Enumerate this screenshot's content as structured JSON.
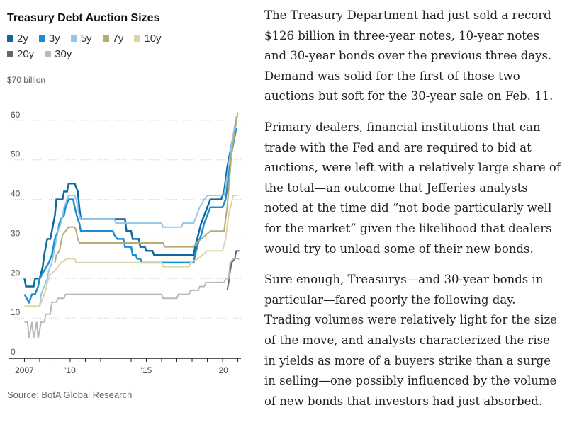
{
  "chart_data": {
    "type": "line",
    "title": "Treasury Debt Auction Sizes",
    "unit_label": "$70 billion",
    "source": "Source: BofA Global Research",
    "ylim": [
      0,
      70
    ],
    "xlim": [
      2006.7,
      2021.3
    ],
    "y_ticks": [
      {
        "value": 0,
        "label": "0"
      },
      {
        "value": 10,
        "label": "10"
      },
      {
        "value": 20,
        "label": "20"
      },
      {
        "value": 30,
        "label": "30"
      },
      {
        "value": 40,
        "label": "40"
      },
      {
        "value": 50,
        "label": "50"
      },
      {
        "value": 60,
        "label": "60"
      }
    ],
    "x_ticks": [
      {
        "value": 2007,
        "label": "2007"
      },
      {
        "value": 2010,
        "label": "'10"
      },
      {
        "value": 2015,
        "label": "'15"
      },
      {
        "value": 2020,
        "label": "'20"
      }
    ],
    "legend_rows": [
      [
        "2y",
        "3y",
        "5y",
        "7y",
        "10y"
      ],
      [
        "20y",
        "30y"
      ]
    ],
    "series": [
      {
        "name": "2y",
        "color": "#0e6a9c",
        "width": 2.5,
        "points": [
          [
            2007.0,
            20
          ],
          [
            2007.1,
            18
          ],
          [
            2007.6,
            18
          ],
          [
            2007.7,
            20
          ],
          [
            2008.0,
            20
          ],
          [
            2008.2,
            23
          ],
          [
            2008.3,
            26
          ],
          [
            2008.5,
            30
          ],
          [
            2008.7,
            30
          ],
          [
            2008.8,
            32
          ],
          [
            2009.0,
            36
          ],
          [
            2009.1,
            40
          ],
          [
            2009.5,
            40
          ],
          [
            2009.6,
            42
          ],
          [
            2009.8,
            42
          ],
          [
            2009.9,
            44
          ],
          [
            2010.3,
            44
          ],
          [
            2010.5,
            42
          ],
          [
            2010.6,
            38
          ],
          [
            2010.7,
            35
          ],
          [
            2013.6,
            35
          ],
          [
            2013.7,
            32
          ],
          [
            2014.0,
            32
          ],
          [
            2014.1,
            30
          ],
          [
            2014.5,
            30
          ],
          [
            2014.6,
            28
          ],
          [
            2014.9,
            28
          ],
          [
            2015.0,
            27
          ],
          [
            2015.4,
            27
          ],
          [
            2015.5,
            26
          ],
          [
            2018.1,
            26
          ],
          [
            2018.2,
            28
          ],
          [
            2018.4,
            31
          ],
          [
            2018.6,
            34
          ],
          [
            2018.8,
            36
          ],
          [
            2019.0,
            38
          ],
          [
            2019.2,
            40
          ],
          [
            2019.9,
            40
          ],
          [
            2020.1,
            42
          ],
          [
            2020.3,
            48
          ],
          [
            2020.6,
            54
          ],
          [
            2020.9,
            60
          ]
        ]
      },
      {
        "name": "3y",
        "color": "#1a8ed0",
        "width": 2.5,
        "points": [
          [
            2007.0,
            16
          ],
          [
            2007.3,
            14
          ],
          [
            2007.5,
            16
          ],
          [
            2007.7,
            16
          ],
          [
            2007.9,
            18
          ],
          [
            2008.0,
            20
          ],
          [
            2008.3,
            22
          ],
          [
            2008.6,
            24
          ],
          [
            2008.8,
            26
          ],
          [
            2008.9,
            28
          ],
          [
            2009.0,
            30
          ],
          [
            2009.2,
            32
          ],
          [
            2009.3,
            34
          ],
          [
            2009.4,
            35
          ],
          [
            2009.6,
            36
          ],
          [
            2009.7,
            38
          ],
          [
            2009.9,
            40
          ],
          [
            2010.2,
            40
          ],
          [
            2010.3,
            38
          ],
          [
            2010.5,
            35
          ],
          [
            2010.6,
            34
          ],
          [
            2010.7,
            32
          ],
          [
            2012.8,
            32
          ],
          [
            2012.9,
            31
          ],
          [
            2013.1,
            30
          ],
          [
            2013.5,
            30
          ],
          [
            2013.6,
            28
          ],
          [
            2014.0,
            28
          ],
          [
            2014.1,
            26
          ],
          [
            2014.3,
            26
          ],
          [
            2014.4,
            25
          ],
          [
            2014.6,
            25
          ],
          [
            2014.7,
            24
          ],
          [
            2018.1,
            24
          ],
          [
            2018.2,
            26
          ],
          [
            2018.4,
            29
          ],
          [
            2018.6,
            31
          ],
          [
            2018.8,
            34
          ],
          [
            2019.0,
            36
          ],
          [
            2019.2,
            38
          ],
          [
            2020.0,
            38
          ],
          [
            2020.2,
            40
          ],
          [
            2020.4,
            46
          ],
          [
            2020.6,
            52
          ],
          [
            2020.9,
            58
          ]
        ]
      },
      {
        "name": "5y",
        "color": "#93c8ec",
        "width": 2,
        "points": [
          [
            2007.0,
            13
          ],
          [
            2008.0,
            13
          ],
          [
            2008.1,
            16
          ],
          [
            2008.3,
            18
          ],
          [
            2008.5,
            20
          ],
          [
            2008.6,
            22
          ],
          [
            2008.8,
            24
          ],
          [
            2008.9,
            26
          ],
          [
            2009.0,
            28
          ],
          [
            2009.1,
            30
          ],
          [
            2009.2,
            32
          ],
          [
            2009.4,
            34
          ],
          [
            2009.5,
            36
          ],
          [
            2009.6,
            38
          ],
          [
            2009.8,
            40
          ],
          [
            2009.9,
            41
          ],
          [
            2010.3,
            41
          ],
          [
            2010.4,
            40
          ],
          [
            2010.5,
            38
          ],
          [
            2010.6,
            36
          ],
          [
            2010.7,
            35
          ],
          [
            2012.9,
            35
          ],
          [
            2013.0,
            34
          ],
          [
            2016.0,
            34
          ],
          [
            2016.1,
            33
          ],
          [
            2017.3,
            33
          ],
          [
            2017.4,
            34
          ],
          [
            2018.1,
            34
          ],
          [
            2018.3,
            36
          ],
          [
            2018.5,
            38
          ],
          [
            2018.8,
            40
          ],
          [
            2019.0,
            41
          ],
          [
            2020.1,
            41
          ],
          [
            2020.3,
            46
          ],
          [
            2020.6,
            54
          ],
          [
            2020.9,
            61
          ]
        ]
      },
      {
        "name": "7y",
        "color": "#b5ac72",
        "width": 2,
        "points": [
          [
            2009.0,
            24
          ],
          [
            2009.1,
            26
          ],
          [
            2009.3,
            27
          ],
          [
            2009.4,
            29
          ],
          [
            2009.5,
            31
          ],
          [
            2009.7,
            32
          ],
          [
            2009.9,
            33
          ],
          [
            2010.3,
            33
          ],
          [
            2010.4,
            32
          ],
          [
            2010.5,
            30
          ],
          [
            2010.6,
            29
          ],
          [
            2016.1,
            29
          ],
          [
            2016.2,
            28
          ],
          [
            2018.1,
            28
          ],
          [
            2018.3,
            29
          ],
          [
            2018.6,
            30
          ],
          [
            2018.9,
            31
          ],
          [
            2019.2,
            32
          ],
          [
            2020.1,
            32
          ],
          [
            2020.3,
            38
          ],
          [
            2020.6,
            52
          ],
          [
            2021.0,
            62
          ]
        ]
      },
      {
        "name": "10y",
        "color": "#dcd4a8",
        "width": 2,
        "points": [
          [
            2007.0,
            13
          ],
          [
            2008.0,
            13
          ],
          [
            2008.2,
            15
          ],
          [
            2008.4,
            17
          ],
          [
            2008.5,
            19
          ],
          [
            2008.7,
            21
          ],
          [
            2009.0,
            22
          ],
          [
            2009.2,
            23
          ],
          [
            2009.4,
            24
          ],
          [
            2009.8,
            25
          ],
          [
            2010.3,
            25
          ],
          [
            2010.4,
            24
          ],
          [
            2016.0,
            24
          ],
          [
            2016.1,
            23
          ],
          [
            2017.8,
            23
          ],
          [
            2017.9,
            24
          ],
          [
            2018.4,
            25
          ],
          [
            2018.7,
            26
          ],
          [
            2019.0,
            27
          ],
          [
            2020.0,
            27
          ],
          [
            2020.2,
            30
          ],
          [
            2020.4,
            36
          ],
          [
            2020.7,
            41
          ],
          [
            2021.0,
            41
          ]
        ]
      },
      {
        "name": "20y",
        "color": "#666666",
        "width": 2,
        "points": [
          [
            2020.3,
            17
          ],
          [
            2020.4,
            19
          ],
          [
            2020.5,
            22
          ],
          [
            2020.6,
            24
          ],
          [
            2020.8,
            25
          ],
          [
            2020.9,
            27
          ],
          [
            2021.1,
            27
          ]
        ]
      },
      {
        "name": "30y",
        "color": "#b9b9b9",
        "width": 2,
        "points": [
          [
            2007.0,
            9
          ],
          [
            2007.2,
            9
          ],
          [
            2007.3,
            5
          ],
          [
            2007.5,
            9
          ],
          [
            2007.6,
            5
          ],
          [
            2007.8,
            9
          ],
          [
            2007.9,
            5
          ],
          [
            2008.1,
            9
          ],
          [
            2008.3,
            9
          ],
          [
            2008.4,
            11
          ],
          [
            2008.7,
            11
          ],
          [
            2008.8,
            14
          ],
          [
            2009.1,
            14
          ],
          [
            2009.2,
            15
          ],
          [
            2009.6,
            15
          ],
          [
            2009.7,
            16
          ],
          [
            2016.0,
            16
          ],
          [
            2016.1,
            15
          ],
          [
            2017.0,
            15
          ],
          [
            2017.1,
            16
          ],
          [
            2017.8,
            16
          ],
          [
            2017.9,
            17
          ],
          [
            2018.4,
            17
          ],
          [
            2018.5,
            18
          ],
          [
            2018.8,
            18
          ],
          [
            2018.9,
            19
          ],
          [
            2020.1,
            19
          ],
          [
            2020.2,
            20
          ],
          [
            2020.4,
            20
          ],
          [
            2020.5,
            24
          ],
          [
            2020.7,
            25
          ],
          [
            2021.1,
            25
          ]
        ]
      }
    ]
  },
  "article": {
    "paragraphs": [
      "The Treasury Department had just sold a record $126 billion in three-year notes, 10-year notes and 30-year bonds over the previous three days. Demand was solid for the first of those two auctions but soft for the 30-year sale on Feb. 11.",
      "Primary dealers, financial institutions that can trade with the Fed and are required to bid at auctions, were left with a relatively large share of the total—an outcome that Jefferies analysts noted at the time did “not bode particularly well for the market” given the likelihood that dealers would try to unload some of their new bonds.",
      "Sure enough, Treasurys—and 30-year bonds in particular—fared poorly the following day. Trading volumes were relatively light for the size of the move, and analysts characterized the rise in yields as more of a buyers strike than a surge in selling—one possibly influenced by the volume of new bonds that investors had just absorbed."
    ]
  }
}
